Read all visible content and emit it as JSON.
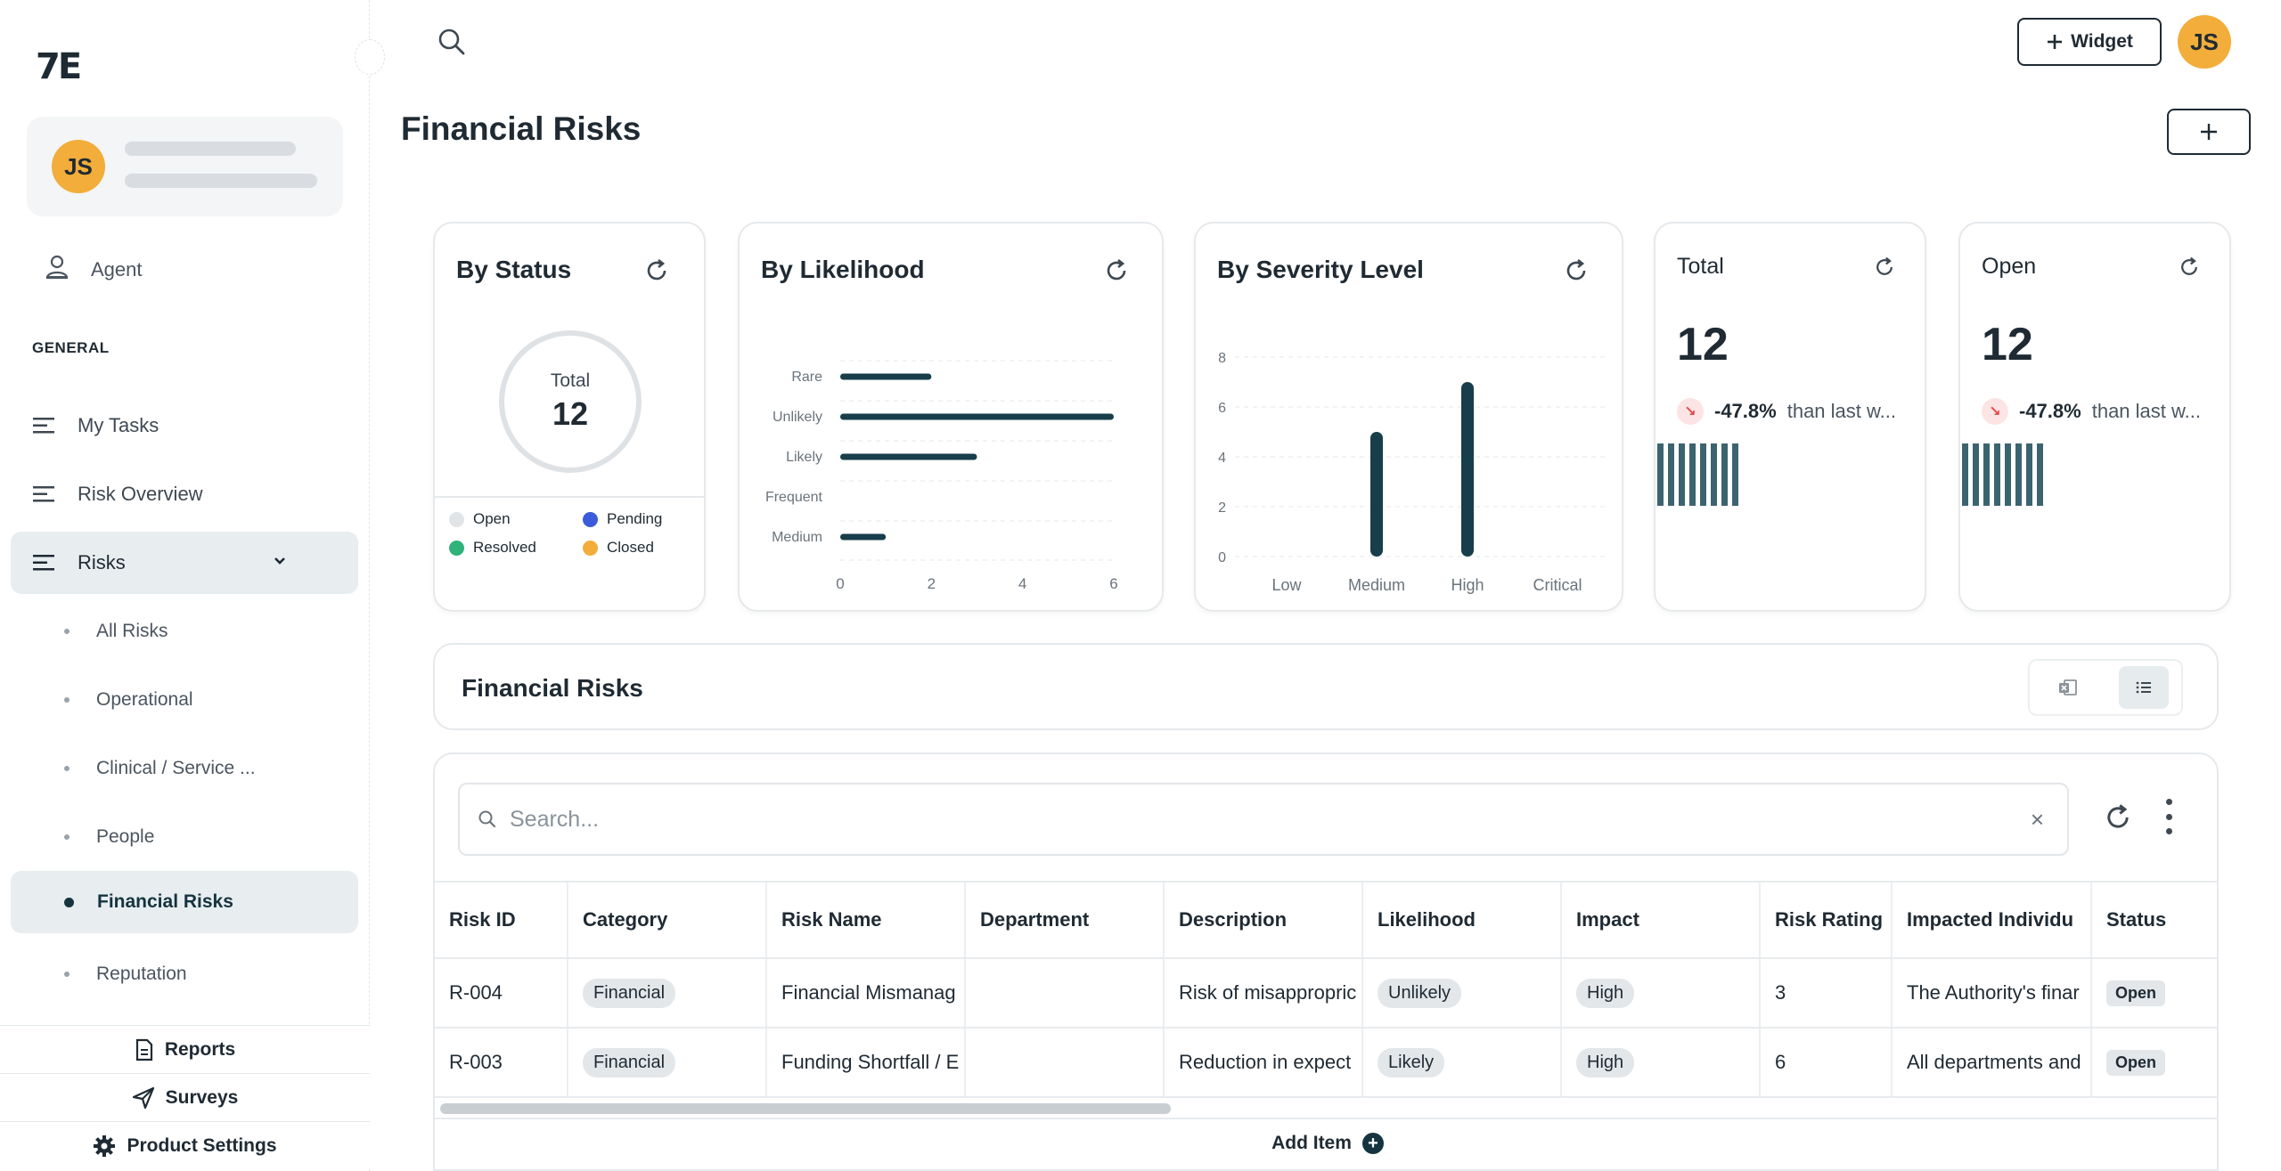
{
  "brand": {
    "logo_text": "7E"
  },
  "user": {
    "initials": "JS"
  },
  "sidebar": {
    "agent_label": "Agent",
    "section_general": "GENERAL",
    "items": [
      {
        "label": "My Tasks"
      },
      {
        "label": "Risk Overview"
      },
      {
        "label": "Risks"
      }
    ],
    "sub_items": [
      {
        "label": "All Risks"
      },
      {
        "label": "Operational"
      },
      {
        "label": "Clinical / Service ..."
      },
      {
        "label": "People"
      },
      {
        "label": "Financial Risks"
      },
      {
        "label": "Reputation"
      }
    ],
    "bottom_links": [
      {
        "label": "Reports",
        "icon": "document-icon"
      },
      {
        "label": "Surveys",
        "icon": "send-icon"
      },
      {
        "label": "Product Settings",
        "icon": "gear-icon"
      }
    ]
  },
  "header": {
    "widget_label": "Widget",
    "page_title": "Financial Risks"
  },
  "cards": {
    "by_status": {
      "title": "By Status",
      "donut_label": "Total",
      "donut_value": "12",
      "legend": [
        {
          "label": "Open",
          "color": "#e1e4e7"
        },
        {
          "label": "Pending",
          "color": "#3b5bdb"
        },
        {
          "label": "Resolved",
          "color": "#2fb37a"
        },
        {
          "label": "Closed",
          "color": "#f2ad3a"
        }
      ]
    },
    "by_likelihood": {
      "title": "By Likelihood"
    },
    "by_severity": {
      "title": "By Severity Level"
    },
    "total": {
      "label": "Total",
      "value": "12",
      "trend_pct": "-47.8%",
      "trend_text": "than last w..."
    },
    "open": {
      "label": "Open",
      "value": "12",
      "trend_pct": "-47.8%",
      "trend_text": "than last w..."
    }
  },
  "chart_data": [
    {
      "type": "bar",
      "orientation": "horizontal",
      "categories": [
        "Rare",
        "Unlikely",
        "Likely",
        "Frequent",
        "Medium"
      ],
      "values": [
        2,
        6,
        3,
        0,
        1
      ],
      "xlim": [
        0,
        6
      ],
      "xticks": [
        "0",
        "2",
        "4",
        "6"
      ]
    },
    {
      "type": "bar",
      "categories": [
        "Low",
        "Medium",
        "High",
        "Critical"
      ],
      "values": [
        0,
        5,
        7,
        0
      ],
      "ylim": [
        0,
        8
      ],
      "yticks": [
        "0",
        "2",
        "4",
        "6",
        "8"
      ]
    }
  ],
  "table": {
    "title": "Financial Risks",
    "search_placeholder": "Search...",
    "columns": [
      "Risk ID",
      "Category",
      "Risk Name",
      "Department",
      "Description",
      "Likelihood",
      "Impact",
      "Risk Rating",
      "Impacted Individu",
      "Status"
    ],
    "rows": [
      {
        "id": "R-004",
        "category": "Financial",
        "name": "Financial Mismanag",
        "department": "",
        "description": "Risk of misappropric",
        "likelihood": "Unlikely",
        "impact": "High",
        "rating": "3",
        "impacted": "The Authority's finar",
        "status": "Open"
      },
      {
        "id": "R-003",
        "category": "Financial",
        "name": "Funding Shortfall / E",
        "department": "",
        "description": "Reduction in expect",
        "likelihood": "Likely",
        "impact": "High",
        "rating": "6",
        "impacted": "All departments and",
        "status": "Open"
      }
    ],
    "add_item_label": "Add Item"
  }
}
